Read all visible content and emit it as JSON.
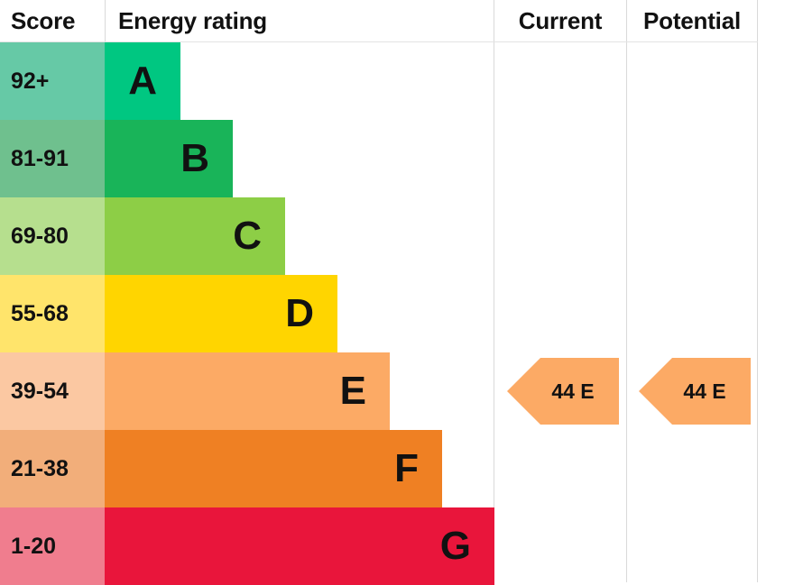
{
  "header": {
    "score": "Score",
    "energy_rating": "Energy rating",
    "current": "Current",
    "potential": "Potential"
  },
  "chart_data": {
    "type": "bar",
    "categories": [
      "A",
      "B",
      "C",
      "D",
      "E",
      "F",
      "G"
    ],
    "score_ranges": [
      "92+",
      "81-91",
      "69-80",
      "55-68",
      "39-54",
      "21-38",
      "1-20"
    ],
    "band_colors": [
      "#00c781",
      "#19b459",
      "#8dce46",
      "#ffd500",
      "#fcaa65",
      "#ef8023",
      "#e9153b"
    ],
    "score_colors": [
      "#66c9a6",
      "#6fc08e",
      "#b6df8e",
      "#ffe46b",
      "#fbc8a2",
      "#f2ae7a",
      "#f07d8e"
    ],
    "current": {
      "value": 44,
      "band": "E",
      "label": "44 E"
    },
    "potential": {
      "value": 44,
      "band": "E",
      "label": "44 E"
    },
    "arrow_color": "#fcaa65"
  }
}
